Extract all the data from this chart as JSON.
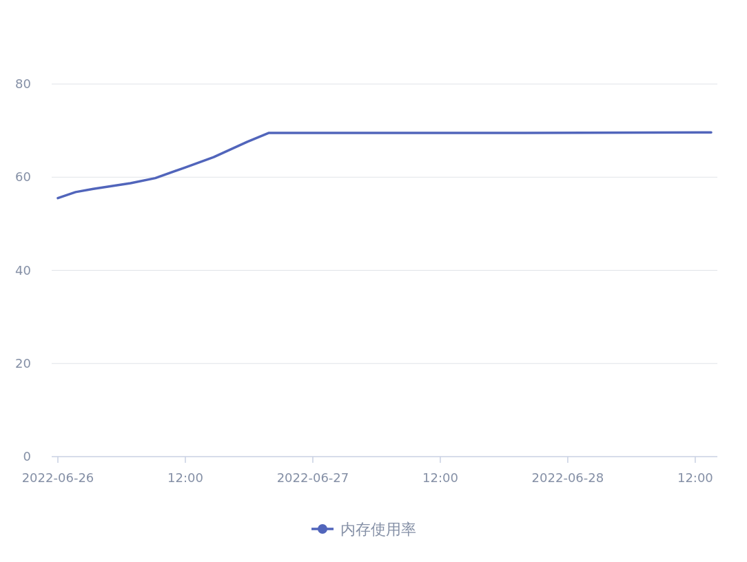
{
  "chart_data": {
    "type": "line",
    "x": [
      "2022-06-26T00:00",
      "2022-06-26T01:40",
      "2022-06-26T03:20",
      "2022-06-26T06:50",
      "2022-06-26T09:10",
      "2022-06-26T12:00",
      "2022-06-26T14:40",
      "2022-06-26T17:50",
      "2022-06-26T19:50",
      "2022-06-27T08:00",
      "2022-06-27T20:00",
      "2022-06-28T13:30"
    ],
    "series": [
      {
        "name": "内存使用率",
        "color": "#5165bb",
        "values": [
          55.5,
          56.8,
          57.5,
          58.7,
          59.8,
          62.1,
          64.3,
          67.6,
          69.5,
          69.5,
          69.5,
          69.6
        ]
      }
    ],
    "xlim": [
      "2022-06-25T23:25",
      "2022-06-28T14:05"
    ],
    "xticks": [
      {
        "value": "2022-06-26T00:00",
        "label": "2022-06-26"
      },
      {
        "value": "2022-06-26T12:00",
        "label": "12:00"
      },
      {
        "value": "2022-06-27T00:00",
        "label": "2022-06-27"
      },
      {
        "value": "2022-06-27T12:00",
        "label": "12:00"
      },
      {
        "value": "2022-06-28T00:00",
        "label": "2022-06-28"
      },
      {
        "value": "2022-06-28T12:00",
        "label": "12:00"
      }
    ],
    "ylim": [
      0,
      80
    ],
    "yticks": [
      0,
      20,
      40,
      60,
      80
    ],
    "grid": "y",
    "legend": "bottom",
    "marker": "none",
    "line_style": "solid"
  }
}
